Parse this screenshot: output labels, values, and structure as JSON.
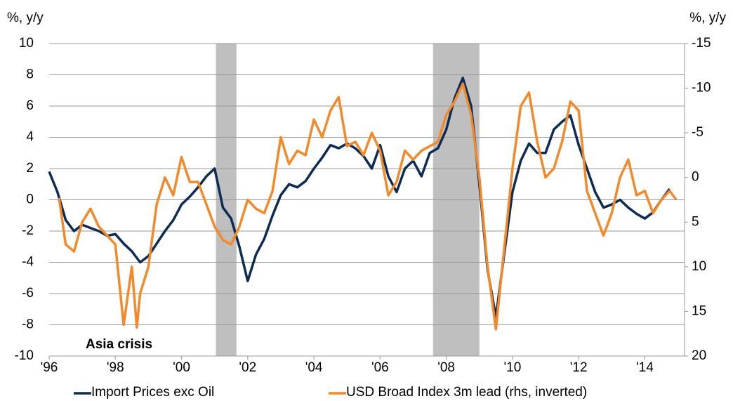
{
  "chart_data": {
    "type": "line",
    "ylabel": "%, y/y",
    "y2label": "%, y/y",
    "annotation": "Asia crisis",
    "xlim": [
      1996,
      2015.2
    ],
    "xticks": [
      {
        "value": 1996,
        "label": "'96"
      },
      {
        "value": 1998,
        "label": "'98"
      },
      {
        "value": 2000,
        "label": "'00"
      },
      {
        "value": 2002,
        "label": "'02"
      },
      {
        "value": 2004,
        "label": "'04"
      },
      {
        "value": 2006,
        "label": "'06"
      },
      {
        "value": 2008,
        "label": "'08"
      },
      {
        "value": 2010,
        "label": "'10"
      },
      {
        "value": 2012,
        "label": "'12"
      },
      {
        "value": 2014,
        "label": "'14"
      }
    ],
    "ylim": [
      -10,
      10
    ],
    "yticks": [
      -10,
      -8,
      -6,
      -4,
      -2,
      0,
      2,
      4,
      6,
      8,
      10
    ],
    "y2lim": [
      -15,
      20
    ],
    "y2ticks": [
      -15,
      -10,
      -5,
      0,
      5,
      10,
      15,
      20
    ],
    "y2_inverted": true,
    "grid": true,
    "shaded_periods": [
      [
        2001.04,
        2001.66
      ],
      [
        2007.6,
        2009.0
      ]
    ],
    "shade_color": "#bfbfbf",
    "series": [
      {
        "name": "Import Prices exc Oil",
        "color": "#0d2b55",
        "x": [
          1996,
          1996.25,
          1996.5,
          1996.75,
          1997,
          1997.25,
          1997.5,
          1997.75,
          1998,
          1998.25,
          1998.5,
          1998.75,
          1999,
          1999.25,
          1999.5,
          1999.75,
          2000,
          2000.25,
          2000.5,
          2000.75,
          2001,
          2001.25,
          2001.5,
          2001.75,
          2002,
          2002.25,
          2002.5,
          2002.75,
          2003,
          2003.25,
          2003.5,
          2003.75,
          2004,
          2004.25,
          2004.5,
          2004.75,
          2005,
          2005.25,
          2005.5,
          2005.75,
          2006,
          2006.25,
          2006.5,
          2006.75,
          2007,
          2007.25,
          2007.5,
          2007.75,
          2008,
          2008.25,
          2008.5,
          2008.75,
          2009,
          2009.25,
          2009.5,
          2009.75,
          2010,
          2010.25,
          2010.5,
          2010.75,
          2011,
          2011.25,
          2011.5,
          2011.75,
          2012,
          2012.25,
          2012.5,
          2012.75,
          2013,
          2013.25,
          2013.5,
          2013.75,
          2014,
          2014.25,
          2014.5,
          2014.75
        ],
        "values": [
          1.8,
          0.5,
          -1.3,
          -2.0,
          -1.6,
          -1.8,
          -2.0,
          -2.3,
          -2.2,
          -2.8,
          -3.3,
          -4.0,
          -3.6,
          -2.8,
          -2.0,
          -1.3,
          -0.3,
          0.2,
          0.8,
          1.5,
          2.0,
          -0.5,
          -1.2,
          -3.0,
          -5.2,
          -3.5,
          -2.5,
          -1.0,
          0.3,
          1.0,
          0.8,
          1.2,
          2.0,
          2.7,
          3.5,
          3.3,
          3.6,
          3.3,
          2.8,
          2.0,
          3.5,
          1.5,
          0.5,
          2.0,
          2.5,
          1.5,
          3.0,
          3.3,
          4.5,
          6.5,
          7.8,
          6.0,
          1.0,
          -4.5,
          -7.5,
          -3.5,
          0.5,
          2.5,
          3.6,
          3.0,
          3.0,
          4.5,
          5.0,
          5.4,
          3.5,
          2.0,
          0.5,
          -0.5,
          -0.3,
          0.0,
          -0.5,
          -0.9,
          -1.2,
          -0.8,
          0.0,
          0.7
        ]
      },
      {
        "name": "USD Broad Index 3m lead (rhs, inverted)",
        "color": "#f28a2b",
        "axis": "y2",
        "x": [
          1996.3,
          1996.5,
          1996.75,
          1997,
          1997.25,
          1997.5,
          1997.75,
          1998,
          1998.25,
          1998.5,
          1998.65,
          1998.75,
          1999,
          1999.25,
          1999.5,
          1999.75,
          2000,
          2000.25,
          2000.5,
          2000.75,
          2001,
          2001.25,
          2001.5,
          2001.75,
          2002,
          2002.25,
          2002.5,
          2002.75,
          2003,
          2003.25,
          2003.5,
          2003.75,
          2004,
          2004.25,
          2004.5,
          2004.75,
          2005,
          2005.25,
          2005.5,
          2005.75,
          2006,
          2006.25,
          2006.5,
          2006.75,
          2007,
          2007.25,
          2007.5,
          2007.75,
          2008,
          2008.25,
          2008.5,
          2008.75,
          2009,
          2009.25,
          2009.5,
          2009.75,
          2010,
          2010.25,
          2010.5,
          2010.75,
          2011,
          2011.25,
          2011.5,
          2011.75,
          2012,
          2012.25,
          2012.5,
          2012.75,
          2013,
          2013.25,
          2013.5,
          2013.75,
          2014,
          2014.25,
          2014.5,
          2014.75,
          2014.95
        ],
        "values": [
          2.3,
          7.5,
          8.3,
          5.0,
          3.5,
          5.5,
          6.5,
          7.5,
          16.5,
          10,
          16.8,
          13,
          10,
          3,
          0,
          2,
          -2.3,
          0.5,
          0.5,
          3,
          5.5,
          7,
          7.5,
          5.5,
          2.5,
          3.5,
          4,
          1.5,
          -4.5,
          -1.5,
          -3,
          -2.5,
          -6.5,
          -4.5,
          -7.5,
          -9,
          -3.5,
          -4,
          -2.5,
          -5,
          -3,
          2,
          0.5,
          -3,
          -2,
          -3,
          -3.5,
          -4,
          -7,
          -8.5,
          -10.5,
          -7,
          0,
          10,
          17,
          8,
          -1,
          -8,
          -9.5,
          -4,
          0,
          -1,
          -4,
          -8.5,
          -7.5,
          1.5,
          4,
          6.5,
          4,
          0,
          -2,
          2,
          1.5,
          4,
          2.5,
          1.5,
          2.5
        ]
      }
    ]
  }
}
